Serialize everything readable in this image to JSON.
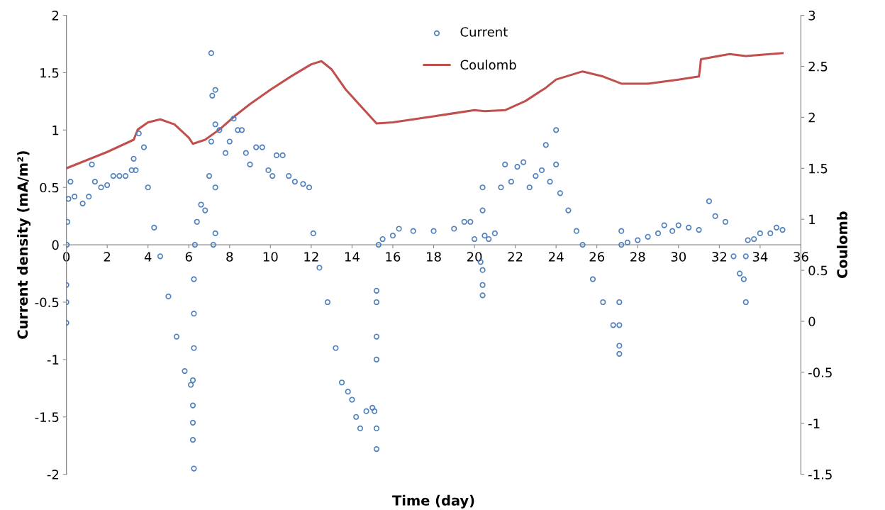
{
  "chart_data": {
    "type": "scatter",
    "xlabel": "Time (day)",
    "ylabel": "Current density (mA/m²)",
    "y2label": "Coulomb",
    "xlim": [
      0,
      36
    ],
    "xticks": [
      0,
      2,
      4,
      6,
      8,
      10,
      12,
      14,
      16,
      18,
      20,
      22,
      24,
      26,
      28,
      30,
      32,
      34,
      36
    ],
    "ylim": [
      -2,
      2
    ],
    "yticks": [
      -2,
      -1.5,
      -1,
      -0.5,
      0,
      0.5,
      1,
      1.5,
      2
    ],
    "y2lim": [
      -1.5,
      3
    ],
    "y2ticks": [
      -1.5,
      -1,
      -0.5,
      0,
      0.5,
      1,
      1.5,
      2,
      2.5,
      3
    ],
    "grid": false,
    "legend": "top",
    "marker": "circle",
    "series": [
      {
        "name": "Current",
        "color": "#4f81bd",
        "x": [
          0,
          0,
          0,
          0.02,
          0.05,
          0.1,
          0.2,
          0.4,
          0.8,
          1.1,
          1.25,
          1.4,
          1.7,
          2.0,
          2.3,
          2.6,
          2.9,
          3.2,
          3.3,
          3.4,
          3.55,
          3.8,
          4.0,
          4.3,
          4.6,
          5.0,
          5.4,
          5.8,
          6.1,
          6.2,
          6.2,
          6.2,
          6.2,
          6.25,
          6.25,
          6.25,
          6.25,
          6.3,
          6.4,
          6.6,
          6.8,
          7.0,
          7.1,
          7.1,
          7.15,
          7.2,
          7.3,
          7.3,
          7.3,
          7.3,
          7.5,
          7.8,
          8.0,
          8.2,
          8.4,
          8.6,
          8.8,
          9.0,
          9.3,
          9.6,
          9.9,
          10.1,
          10.3,
          10.6,
          10.9,
          11.2,
          11.6,
          11.9,
          12.1,
          12.4,
          12.8,
          13.2,
          13.5,
          13.8,
          14.0,
          14.2,
          14.4,
          14.7,
          15.0,
          15.1,
          15.2,
          15.2,
          15.2,
          15.2,
          15.2,
          15.2,
          15.3,
          15.5,
          16.0,
          16.3,
          17,
          18,
          19,
          19.5,
          19.8,
          20.0,
          20.3,
          20.4,
          20.4,
          20.4,
          20.4,
          20.4,
          20.5,
          20.7,
          21.0,
          21.3,
          21.5,
          21.8,
          22.1,
          22.4,
          22.7,
          23.0,
          23.3,
          23.5,
          23.7,
          24.0,
          24.0,
          24.2,
          24.6,
          25.0,
          25.3,
          25.8,
          26.3,
          26.8,
          27.1,
          27.1,
          27.1,
          27.1,
          27.2,
          27.2,
          27.5,
          28,
          28.5,
          29,
          29.3,
          29.7,
          30,
          30.5,
          31,
          31.5,
          31.8,
          32.3,
          32.7,
          33,
          33.2,
          33.3,
          33.3,
          33.4,
          33.7,
          34,
          34.5,
          34.8,
          35.1
        ],
        "values": [
          -0.68,
          -0.5,
          -0.35,
          0,
          0.2,
          0.4,
          0.55,
          0.42,
          0.36,
          0.42,
          0.7,
          0.55,
          0.5,
          0.52,
          0.6,
          0.6,
          0.6,
          0.65,
          0.75,
          0.65,
          0.97,
          0.85,
          0.5,
          0.15,
          -0.1,
          -0.45,
          -0.8,
          -1.1,
          -1.22,
          -1.18,
          -1.4,
          -1.55,
          -1.7,
          -1.95,
          -0.9,
          -0.6,
          -0.3,
          0.0,
          0.2,
          0.35,
          0.3,
          0.6,
          0.9,
          1.67,
          1.3,
          0,
          1.05,
          0.1,
          1.35,
          0.5,
          1.0,
          0.8,
          0.9,
          1.1,
          1.0,
          1.0,
          0.8,
          0.7,
          0.85,
          0.85,
          0.65,
          0.6,
          0.78,
          0.78,
          0.6,
          0.55,
          0.53,
          0.5,
          0.1,
          -0.2,
          -0.5,
          -0.9,
          -1.2,
          -1.28,
          -1.35,
          -1.5,
          -1.6,
          -1.45,
          -1.42,
          -1.45,
          -1.78,
          -1.6,
          -1.0,
          -0.8,
          -0.5,
          -0.4,
          0.0,
          0.05,
          0.08,
          0.14,
          0.12,
          0.12,
          0.14,
          0.2,
          0.2,
          0.05,
          -0.15,
          -0.22,
          0.5,
          0.3,
          -0.35,
          -0.44,
          0.08,
          0.05,
          0.1,
          0.5,
          0.7,
          0.55,
          0.68,
          0.72,
          0.5,
          0.6,
          0.65,
          0.87,
          0.55,
          0.7,
          1.0,
          0.45,
          0.3,
          0.12,
          0.0,
          -0.3,
          -0.5,
          -0.7,
          -0.88,
          -0.95,
          -0.7,
          -0.5,
          0.12,
          0.0,
          0.02,
          0.04,
          0.07,
          0.1,
          0.17,
          0.12,
          0.17,
          0.15,
          0.13,
          0.38,
          0.25,
          0.2,
          -0.1,
          -0.25,
          -0.3,
          -0.5,
          -0.1,
          0.04,
          0.05,
          0.1,
          0.1,
          0.15,
          0.13
        ]
      },
      {
        "name": "Coulomb",
        "type": "line",
        "axis": "y2",
        "color": "#c0504d",
        "line_style": "solid",
        "marker": "none",
        "x": [
          0,
          1,
          2,
          3.3,
          3.5,
          4,
          4.6,
          5.3,
          6.0,
          6.2,
          6.8,
          7.5,
          8.3,
          9,
          10,
          11,
          12,
          12.5,
          13,
          13.7,
          15.2,
          16,
          17,
          18,
          19,
          20,
          20.5,
          21.5,
          22.5,
          23.5,
          24,
          25.3,
          26.3,
          27.2,
          28.5,
          30,
          31,
          31.05,
          31.1,
          32.5,
          33.3,
          35.1
        ],
        "values": [
          1.5,
          1.58,
          1.66,
          1.78,
          1.88,
          1.95,
          1.98,
          1.93,
          1.8,
          1.74,
          1.78,
          1.88,
          2.02,
          2.13,
          2.27,
          2.4,
          2.52,
          2.55,
          2.47,
          2.27,
          1.94,
          1.95,
          1.98,
          2.01,
          2.04,
          2.07,
          2.06,
          2.07,
          2.16,
          2.29,
          2.37,
          2.45,
          2.4,
          2.33,
          2.33,
          2.37,
          2.4,
          2.47,
          2.57,
          2.62,
          2.6,
          2.63
        ]
      }
    ]
  }
}
